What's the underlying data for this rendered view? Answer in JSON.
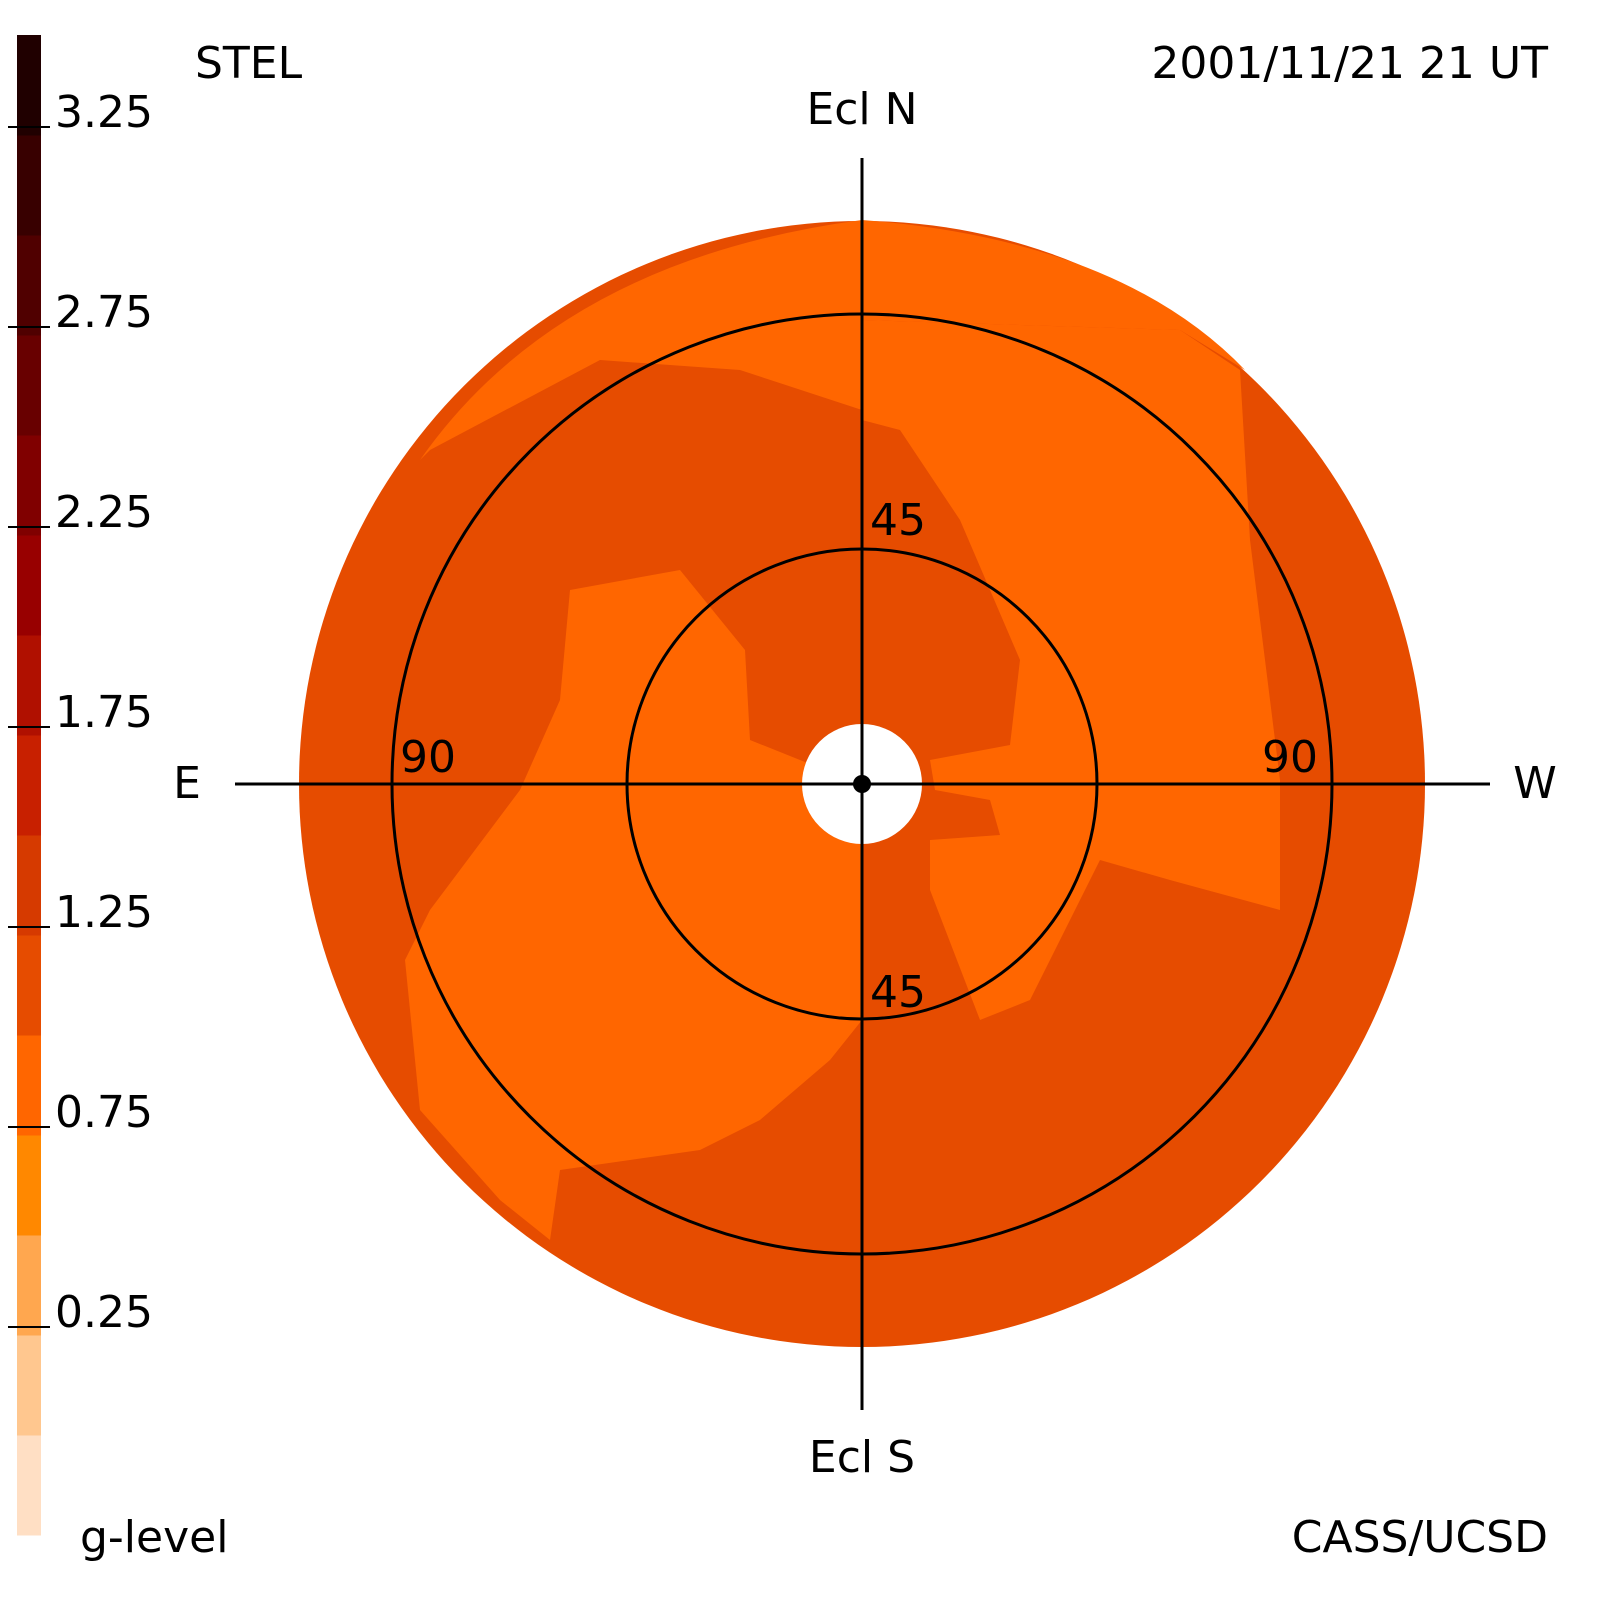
{
  "chart_data": {
    "type": "skymap",
    "title": "STEL",
    "timestamp": "2001/11/21 21 UT",
    "credit": "CASS/UCSD",
    "directions": {
      "top": "Ecl N",
      "bottom": "Ecl S",
      "left": "E",
      "right": "W"
    },
    "elongation_ticks": [
      45,
      90
    ],
    "colorbar": {
      "label": "g-level",
      "lim": [
        -0.3,
        3.45
      ],
      "ticks": [
        0.25,
        0.75,
        1.25,
        1.75,
        2.25,
        2.75,
        3.25
      ],
      "colors": [
        "#ffdfc4",
        "#ffc78f",
        "#ffa74f",
        "#ff8800",
        "#ff6600",
        "#e64c00",
        "#d63a00",
        "#c82000",
        "#b01000",
        "#980000",
        "#800000",
        "#680000",
        "#500000",
        "#380000",
        "#200000"
      ]
    }
  }
}
